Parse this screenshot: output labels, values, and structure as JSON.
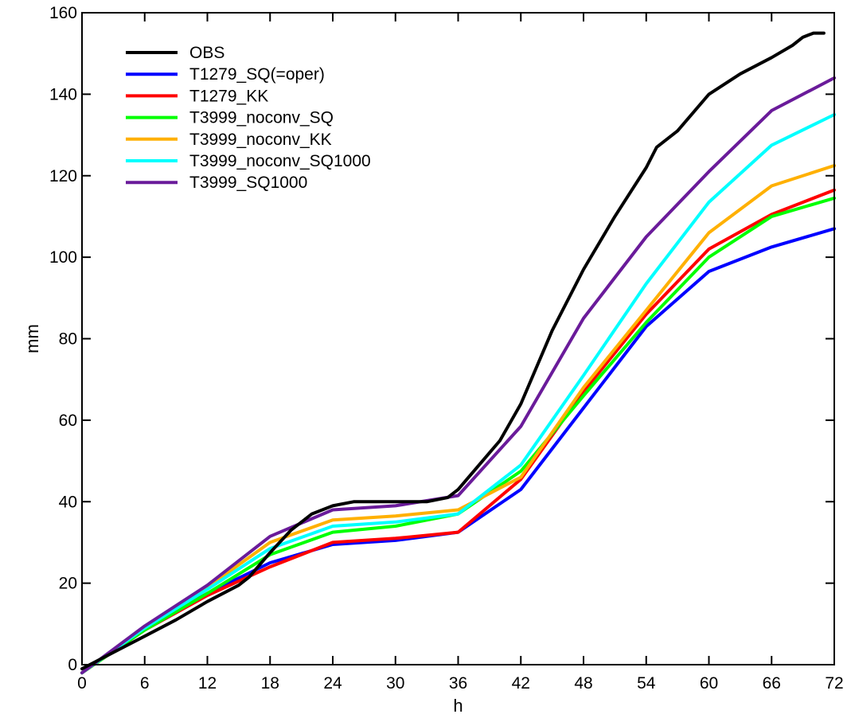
{
  "chart_data": {
    "type": "line",
    "title": "",
    "xlabel": "h",
    "ylabel": "mm",
    "xlim": [
      0,
      72
    ],
    "ylim": [
      0,
      160
    ],
    "x_ticks": [
      0,
      6,
      12,
      18,
      24,
      30,
      36,
      42,
      48,
      54,
      60,
      66,
      72
    ],
    "y_ticks": [
      0,
      20,
      40,
      60,
      80,
      100,
      120,
      140,
      160
    ],
    "grid": false,
    "legend_position": "top-left",
    "series": [
      {
        "name": "OBS",
        "color": "#000000",
        "x": [
          0,
          3,
          6,
          9,
          12,
          15,
          16,
          18,
          20,
          22,
          24,
          26,
          28,
          30,
          33,
          35,
          36,
          39,
          40,
          42,
          45,
          48,
          51,
          54,
          55,
          57,
          60,
          63,
          66,
          68,
          69,
          70,
          71
        ],
        "y": [
          -1,
          3,
          7,
          11,
          15.5,
          19.5,
          21.5,
          27.5,
          33,
          37,
          39,
          40,
          40,
          40,
          40,
          41,
          43,
          52,
          55,
          64,
          82,
          97,
          110,
          122,
          127,
          131,
          140,
          145,
          149,
          152,
          154,
          155,
          155
        ]
      },
      {
        "name": "T1279_SQ(=oper)",
        "color": "#0000ff",
        "x": [
          0,
          6,
          12,
          18,
          24,
          30,
          36,
          42,
          48,
          54,
          60,
          66,
          72
        ],
        "y": [
          -2,
          9,
          17.5,
          25,
          29.5,
          30.5,
          32.5,
          43,
          63,
          83,
          96.5,
          102.5,
          107
        ]
      },
      {
        "name": "T1279_KK",
        "color": "#ff0000",
        "x": [
          0,
          6,
          12,
          18,
          24,
          30,
          36,
          42,
          48,
          54,
          60,
          66,
          72
        ],
        "y": [
          -2,
          8.5,
          17,
          24,
          30,
          31,
          32.5,
          45.5,
          67,
          86,
          102,
          110.5,
          116.5
        ]
      },
      {
        "name": "T3999_noconv_SQ",
        "color": "#00ff00",
        "x": [
          0,
          6,
          12,
          18,
          24,
          30,
          36,
          42,
          48,
          54,
          60,
          66,
          72
        ],
        "y": [
          -2,
          8.5,
          17.5,
          27,
          32.5,
          34,
          37,
          47.5,
          66,
          84,
          100,
          110,
          114.5
        ]
      },
      {
        "name": "T3999_noconv_KK",
        "color": "#ffb000",
        "x": [
          0,
          6,
          12,
          18,
          24,
          30,
          36,
          42,
          48,
          54,
          60,
          66,
          72
        ],
        "y": [
          -2,
          9,
          19,
          30,
          35.5,
          36.5,
          38,
          46,
          68,
          87,
          106,
          117.5,
          122.5
        ]
      },
      {
        "name": "T3999_noconv_SQ1000",
        "color": "#00ffff",
        "x": [
          0,
          6,
          12,
          18,
          24,
          30,
          36,
          42,
          48,
          54,
          60,
          66,
          72
        ],
        "y": [
          -2,
          9,
          18.5,
          28.5,
          34,
          35,
          37,
          49,
          71,
          93.5,
          113.5,
          127.5,
          135
        ]
      },
      {
        "name": "T3999_SQ1000",
        "color": "#6a1b9a",
        "x": [
          0,
          6,
          12,
          18,
          24,
          30,
          36,
          42,
          48,
          54,
          60,
          66,
          72
        ],
        "y": [
          -2,
          9.5,
          19.5,
          31.5,
          38,
          39,
          41.5,
          58.5,
          85,
          105,
          121,
          136,
          144
        ]
      }
    ]
  }
}
